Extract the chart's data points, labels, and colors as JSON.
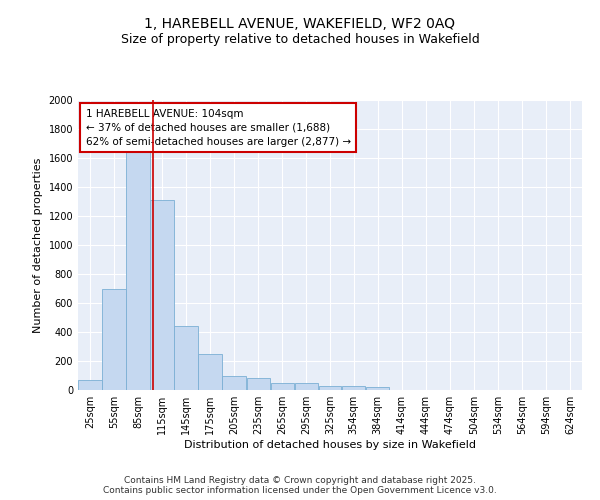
{
  "title": "1, HAREBELL AVENUE, WAKEFIELD, WF2 0AQ",
  "subtitle": "Size of property relative to detached houses in Wakefield",
  "xlabel": "Distribution of detached houses by size in Wakefield",
  "ylabel": "Number of detached properties",
  "bar_color": "#c5d8f0",
  "bar_edge_color": "#7bafd4",
  "background_color": "#e8eef8",
  "grid_color": "#ffffff",
  "annotation_box_color": "#cc0000",
  "annotation_line1": "1 HAREBELL AVENUE: 104sqm",
  "annotation_line2": "← 37% of detached houses are smaller (1,688)",
  "annotation_line3": "62% of semi-detached houses are larger (2,877) →",
  "vline_x": 104,
  "vline_color": "#cc0000",
  "categories": [
    "25sqm",
    "55sqm",
    "85sqm",
    "115sqm",
    "145sqm",
    "175sqm",
    "205sqm",
    "235sqm",
    "265sqm",
    "295sqm",
    "325sqm",
    "354sqm",
    "384sqm",
    "414sqm",
    "444sqm",
    "474sqm",
    "504sqm",
    "534sqm",
    "564sqm",
    "594sqm",
    "624sqm"
  ],
  "bin_edges": [
    10,
    40,
    70,
    100,
    130,
    160,
    190,
    220,
    250,
    280,
    310,
    339,
    369,
    399,
    429,
    459,
    489,
    519,
    549,
    579,
    609,
    639
  ],
  "values": [
    70,
    700,
    1680,
    1310,
    440,
    250,
    95,
    80,
    50,
    50,
    30,
    25,
    20,
    0,
    0,
    0,
    0,
    0,
    0,
    0,
    0
  ],
  "ylim": [
    0,
    2000
  ],
  "yticks": [
    0,
    200,
    400,
    600,
    800,
    1000,
    1200,
    1400,
    1600,
    1800,
    2000
  ],
  "footer": "Contains HM Land Registry data © Crown copyright and database right 2025.\nContains public sector information licensed under the Open Government Licence v3.0.",
  "title_fontsize": 10,
  "subtitle_fontsize": 9,
  "axis_label_fontsize": 8,
  "tick_fontsize": 7,
  "annotation_fontsize": 7.5,
  "footer_fontsize": 6.5
}
